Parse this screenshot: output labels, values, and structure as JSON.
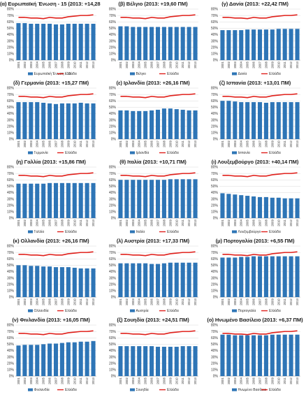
{
  "colors": {
    "bar": "#2e75b6",
    "greece_line": "#e0201b",
    "grid": "#d9d9d9"
  },
  "chart_data": [
    {
      "type": "bar",
      "title": "(α) Ευρωπαϊκή Ένωση - 15 (2013: +14,28 ΠΜ)",
      "legend": [
        "Ευρωπαϊκή Ένωση - 15",
        "Ελλάδα"
      ],
      "x": [
        "2001",
        "2002",
        "2003",
        "2004",
        "2005",
        "2006",
        "2007",
        "2008",
        "2009",
        "2010",
        "2011",
        "2012",
        "2013"
      ],
      "series": [
        {
          "name": "Ευρωπαϊκή Ένωση - 15",
          "type": "bar",
          "values": [
            58,
            58,
            57,
            57,
            57,
            57,
            56,
            56,
            57,
            57,
            57,
            57,
            57
          ]
        },
        {
          "name": "Ελλάδα",
          "type": "line",
          "values": [
            67,
            67,
            66,
            66,
            65,
            67,
            66,
            66,
            68,
            69,
            70,
            70,
            71
          ]
        }
      ],
      "ylim": [
        0,
        80
      ],
      "yticks": [
        "0%",
        "10%",
        "20%",
        "30%",
        "40%",
        "50%",
        "60%",
        "70%",
        "80%"
      ]
    },
    {
      "type": "bar",
      "title": "(β) Βέλγιο (2013: +19,60 ΠΜ)",
      "legend": [
        "Βέλγιο",
        "Ελλάδα"
      ],
      "x": [
        "2001",
        "2002",
        "2003",
        "2004",
        "2005",
        "2006",
        "2007",
        "2008",
        "2009",
        "2010",
        "2011",
        "2012",
        "2013"
      ],
      "series": [
        {
          "name": "Βέλγιο",
          "type": "bar",
          "values": [
            53,
            53,
            52,
            52,
            52,
            52,
            52,
            52,
            52,
            52,
            52,
            52,
            52
          ]
        },
        {
          "name": "Ελλάδα",
          "type": "line",
          "values": [
            67,
            67,
            66,
            66,
            65,
            67,
            66,
            66,
            68,
            69,
            70,
            70,
            71
          ]
        }
      ],
      "ylim": [
        0,
        80
      ],
      "yticks": [
        "0%",
        "10%",
        "20%",
        "30%",
        "40%",
        "50%",
        "60%",
        "70%",
        "80%"
      ]
    },
    {
      "type": "bar",
      "title": "(γ) Δανία (2013: +22,42 ΠΜ)",
      "legend": [
        "Δανία",
        "Ελλάδα"
      ],
      "x": [
        "2001",
        "2002",
        "2003",
        "2004",
        "2005",
        "2006",
        "2007",
        "2008",
        "2009",
        "2010",
        "2011",
        "2012",
        "2013"
      ],
      "series": [
        {
          "name": "Δανία",
          "type": "bar",
          "values": [
            47,
            47,
            47,
            47,
            48,
            48,
            48,
            48,
            48,
            49,
            49,
            49,
            49
          ]
        },
        {
          "name": "Ελλάδα",
          "type": "line",
          "values": [
            67,
            67,
            66,
            66,
            65,
            67,
            66,
            66,
            68,
            69,
            70,
            70,
            71
          ]
        }
      ],
      "ylim": [
        0,
        80
      ],
      "yticks": [
        "0%",
        "10%",
        "20%",
        "30%",
        "40%",
        "50%",
        "60%",
        "70%",
        "80%"
      ]
    },
    {
      "type": "bar",
      "title": "(δ) Γερμανία (2013: +15,27 ΠΜ)",
      "legend": [
        "Γερμανία",
        "Ελλάδα"
      ],
      "x": [
        "2001",
        "2002",
        "2003",
        "2004",
        "2005",
        "2006",
        "2007",
        "2008",
        "2009",
        "2010",
        "2011",
        "2012",
        "2013"
      ],
      "series": [
        {
          "name": "Γερμανία",
          "type": "bar",
          "values": [
            58,
            58,
            58,
            58,
            57,
            56,
            55,
            56,
            56,
            56,
            57,
            56,
            56
          ]
        },
        {
          "name": "Ελλάδα",
          "type": "line",
          "values": [
            67,
            67,
            66,
            66,
            65,
            67,
            66,
            66,
            68,
            69,
            70,
            70,
            71
          ]
        }
      ],
      "ylim": [
        0,
        80
      ],
      "yticks": [
        "0%",
        "10%",
        "20%",
        "30%",
        "40%",
        "50%",
        "60%",
        "70%",
        "80%"
      ]
    },
    {
      "type": "bar",
      "title": "(ε) Ιρλανδία (2013: +26,16 ΠΜ)",
      "legend": [
        "Ιρλανδία",
        "Ελλάδα"
      ],
      "x": [
        "2001",
        "2002",
        "2003",
        "2004",
        "2005",
        "2006",
        "2007",
        "2008",
        "2009",
        "2010",
        "2011",
        "2012",
        "2013"
      ],
      "series": [
        {
          "name": "Ιρλανδία",
          "type": "bar",
          "values": [
            45,
            45,
            44,
            44,
            44,
            45,
            46,
            48,
            48,
            47,
            46,
            45,
            45
          ]
        },
        {
          "name": "Ελλάδα",
          "type": "line",
          "values": [
            67,
            67,
            66,
            66,
            65,
            67,
            66,
            66,
            68,
            69,
            70,
            70,
            71
          ]
        }
      ],
      "ylim": [
        0,
        80
      ],
      "yticks": [
        "0%",
        "10%",
        "20%",
        "30%",
        "40%",
        "50%",
        "60%",
        "70%",
        "80%"
      ]
    },
    {
      "type": "bar",
      "title": "(ζ) Ισπανία (2013: +13,01 ΠΜ)",
      "legend": [
        "Ισπανία",
        "Ελλάδα"
      ],
      "x": [
        "2001",
        "2002",
        "2003",
        "2004",
        "2005",
        "2006",
        "2007",
        "2008",
        "2009",
        "2010",
        "2011",
        "2012",
        "2013"
      ],
      "series": [
        {
          "name": "Ισπανία",
          "type": "bar",
          "values": [
            60,
            60,
            59,
            58,
            58,
            58,
            58,
            57,
            58,
            58,
            58,
            58,
            58
          ]
        },
        {
          "name": "Ελλάδα",
          "type": "line",
          "values": [
            67,
            67,
            66,
            66,
            65,
            67,
            66,
            66,
            68,
            69,
            70,
            70,
            71
          ]
        }
      ],
      "ylim": [
        0,
        80
      ],
      "yticks": [
        "0%",
        "10%",
        "20%",
        "30%",
        "40%",
        "50%",
        "60%",
        "70%",
        "80%"
      ]
    },
    {
      "type": "bar",
      "title": "(η) Γαλλία (2013: +15,86 ΠΜ)",
      "legend": [
        "Γαλλία",
        "Ελλάδα"
      ],
      "x": [
        "2001",
        "2002",
        "2003",
        "2004",
        "2005",
        "2006",
        "2007",
        "2008",
        "2009",
        "2010",
        "2011",
        "2012",
        "2013"
      ],
      "series": [
        {
          "name": "Γαλλία",
          "type": "bar",
          "values": [
            54,
            54,
            54,
            54,
            54,
            55,
            55,
            55,
            55,
            55,
            55,
            55,
            55
          ]
        },
        {
          "name": "Ελλάδα",
          "type": "line",
          "values": [
            67,
            67,
            66,
            66,
            65,
            67,
            66,
            66,
            68,
            69,
            70,
            70,
            71
          ]
        }
      ],
      "ylim": [
        0,
        80
      ],
      "yticks": [
        "0%",
        "10%",
        "20%",
        "30%",
        "40%",
        "50%",
        "60%",
        "70%",
        "80%"
      ]
    },
    {
      "type": "bar",
      "title": "(θ) Ιταλία (2013: +10,71 ΠΜ)",
      "legend": [
        "Ιταλία",
        "Ελλάδα"
      ],
      "x": [
        "2001",
        "2002",
        "2003",
        "2004",
        "2005",
        "2006",
        "2007",
        "2008",
        "2009",
        "2010",
        "2011",
        "2012",
        "2013"
      ],
      "series": [
        {
          "name": "Ιταλία",
          "type": "bar",
          "values": [
            60,
            60,
            60,
            60,
            60,
            60,
            60,
            60,
            61,
            61,
            61,
            61,
            61
          ]
        },
        {
          "name": "Ελλάδα",
          "type": "line",
          "values": [
            67,
            67,
            66,
            66,
            65,
            67,
            66,
            66,
            68,
            69,
            70,
            70,
            71
          ]
        }
      ],
      "ylim": [
        0,
        80
      ],
      "yticks": [
        "0%",
        "10%",
        "20%",
        "30%",
        "40%",
        "50%",
        "60%",
        "70%",
        "80%"
      ]
    },
    {
      "type": "bar",
      "title": "(ι) Λουξεμβούργο (2013: +40,14 ΠΜ)",
      "legend": [
        "Λουξεμβούργο",
        "Ελλάδα"
      ],
      "x": [
        "2001",
        "2002",
        "2003",
        "2004",
        "2005",
        "2006",
        "2007",
        "2008",
        "2009",
        "2010",
        "2011",
        "2012",
        "2013"
      ],
      "series": [
        {
          "name": "Λουξεμβούργο",
          "type": "bar",
          "values": [
            39,
            38,
            37,
            36,
            35,
            34,
            33,
            33,
            32,
            32,
            31,
            31,
            31
          ]
        },
        {
          "name": "Ελλάδα",
          "type": "line",
          "values": [
            67,
            67,
            66,
            66,
            65,
            67,
            66,
            66,
            68,
            69,
            70,
            70,
            71
          ]
        }
      ],
      "ylim": [
        0,
        80
      ],
      "yticks": [
        "0%",
        "10%",
        "20%",
        "30%",
        "40%",
        "50%",
        "60%",
        "70%",
        "80%"
      ]
    },
    {
      "type": "bar",
      "title": "(κ) Ολλανδία (2013: +26,16 ΠΜ)",
      "legend": [
        "Ολλανδία",
        "Ελλάδα"
      ],
      "x": [
        "2001",
        "2002",
        "2003",
        "2004",
        "2005",
        "2006",
        "2007",
        "2008",
        "2009",
        "2010",
        "2011",
        "2012",
        "2013"
      ],
      "series": [
        {
          "name": "Ολλανδία",
          "type": "bar",
          "values": [
            50,
            50,
            49,
            49,
            48,
            48,
            47,
            47,
            47,
            46,
            45,
            45,
            45
          ]
        },
        {
          "name": "Ελλάδα",
          "type": "line",
          "values": [
            67,
            67,
            66,
            66,
            65,
            67,
            66,
            66,
            68,
            69,
            70,
            70,
            71
          ]
        }
      ],
      "ylim": [
        0,
        80
      ],
      "yticks": [
        "0%",
        "10%",
        "20%",
        "30%",
        "40%",
        "50%",
        "60%",
        "70%",
        "80%"
      ]
    },
    {
      "type": "bar",
      "title": "(λ) Αυστρία (2013: +17,33 ΠΜ)",
      "legend": [
        "Αυστρία",
        "Ελλάδα"
      ],
      "x": [
        "2001",
        "2002",
        "2003",
        "2004",
        "2005",
        "2006",
        "2007",
        "2008",
        "2009",
        "2010",
        "2011",
        "2012",
        "2013"
      ],
      "series": [
        {
          "name": "Αυστρία",
          "type": "bar",
          "values": [
            53,
            53,
            53,
            53,
            53,
            52,
            52,
            53,
            54,
            54,
            54,
            54,
            54
          ]
        },
        {
          "name": "Ελλάδα",
          "type": "line",
          "values": [
            67,
            67,
            66,
            66,
            65,
            67,
            66,
            66,
            68,
            69,
            70,
            70,
            71
          ]
        }
      ],
      "ylim": [
        0,
        80
      ],
      "yticks": [
        "0%",
        "10%",
        "20%",
        "30%",
        "40%",
        "50%",
        "60%",
        "70%",
        "80%"
      ]
    },
    {
      "type": "bar",
      "title": "(μ) Πορτογαλία (2013: +6,55 ΠΜ)",
      "legend": [
        "Πορτογαλία",
        "Ελλάδα"
      ],
      "x": [
        "2001",
        "2002",
        "2003",
        "2004",
        "2005",
        "2006",
        "2007",
        "2008",
        "2009",
        "2010",
        "2011",
        "2012",
        "2013"
      ],
      "series": [
        {
          "name": "Πορτογαλία",
          "type": "bar",
          "values": [
            62,
            62,
            62,
            63,
            63,
            64,
            64,
            64,
            64,
            64,
            64,
            64,
            64
          ]
        },
        {
          "name": "Ελλάδα",
          "type": "line",
          "values": [
            67,
            67,
            66,
            66,
            65,
            67,
            66,
            66,
            68,
            69,
            70,
            70,
            71
          ]
        }
      ],
      "ylim": [
        0,
        80
      ],
      "yticks": [
        "0%",
        "10%",
        "20%",
        "30%",
        "40%",
        "50%",
        "60%",
        "70%",
        "80%"
      ]
    },
    {
      "type": "bar",
      "title": "(ν) Φινλανδία (2013: +16,05 ΠΜ)",
      "legend": [
        "Φινλανδία",
        "Ελλάδα"
      ],
      "x": [
        "2001",
        "2002",
        "2003",
        "2004",
        "2005",
        "2006",
        "2007",
        "2008",
        "2009",
        "2010",
        "2011",
        "2012",
        "2013"
      ],
      "series": [
        {
          "name": "Φινλανδία",
          "type": "bar",
          "values": [
            48,
            49,
            49,
            49,
            50,
            51,
            51,
            52,
            53,
            53,
            54,
            54,
            55
          ]
        },
        {
          "name": "Ελλάδα",
          "type": "line",
          "values": [
            67,
            67,
            66,
            66,
            65,
            67,
            66,
            66,
            68,
            69,
            70,
            70,
            71
          ]
        }
      ],
      "ylim": [
        0,
        80
      ],
      "yticks": [
        "0%",
        "10%",
        "20%",
        "30%",
        "40%",
        "50%",
        "60%",
        "70%",
        "80%"
      ]
    },
    {
      "type": "bar",
      "title": "(ξ) Σουηδία (2013: +24,51 ΠΜ)",
      "legend": [
        "Σουηδία",
        "Ελλάδα"
      ],
      "x": [
        "2001",
        "2002",
        "2003",
        "2004",
        "2005",
        "2006",
        "2007",
        "2008",
        "2009",
        "2010",
        "2011",
        "2012",
        "2013"
      ],
      "series": [
        {
          "name": "Σουηδία",
          "type": "bar",
          "values": [
            47,
            47,
            47,
            47,
            47,
            47,
            46,
            46,
            46,
            46,
            47,
            47,
            47
          ]
        },
        {
          "name": "Ελλάδα",
          "type": "line",
          "values": [
            67,
            67,
            66,
            66,
            65,
            67,
            66,
            66,
            68,
            69,
            70,
            70,
            71
          ]
        }
      ],
      "ylim": [
        0,
        80
      ],
      "yticks": [
        "0%",
        "10%",
        "20%",
        "30%",
        "40%",
        "50%",
        "60%",
        "70%",
        "80%"
      ]
    },
    {
      "type": "bar",
      "title": "(ο) Ηνωμένο Βασίλειο (2013: +6,37 ΠΜ)",
      "legend": [
        "Ηνωμένο Βασίλειο",
        "Ελλάδα"
      ],
      "x": [
        "2001",
        "2002",
        "2003",
        "2004",
        "2005",
        "2006",
        "2007",
        "2008",
        "2009",
        "2010",
        "2011",
        "2012",
        "2013"
      ],
      "series": [
        {
          "name": "Ηνωμένο Βασίλειο",
          "type": "bar",
          "values": [
            65,
            65,
            64,
            64,
            64,
            64,
            64,
            64,
            65,
            65,
            65,
            65,
            65
          ]
        },
        {
          "name": "Ελλάδα",
          "type": "line",
          "values": [
            67,
            67,
            66,
            66,
            65,
            67,
            66,
            66,
            68,
            69,
            70,
            70,
            71
          ]
        }
      ],
      "ylim": [
        0,
        80
      ],
      "yticks": [
        "0%",
        "10%",
        "20%",
        "30%",
        "40%",
        "50%",
        "60%",
        "70%",
        "80%"
      ]
    }
  ]
}
